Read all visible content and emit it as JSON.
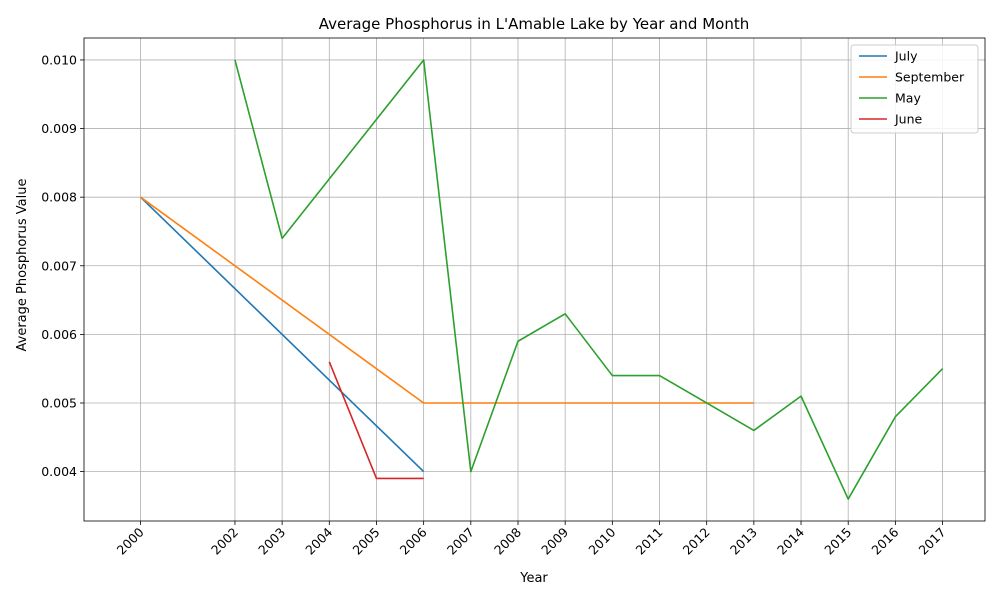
{
  "chart_data": {
    "type": "line",
    "title": "Average Phosphorus in L'Amable Lake by Year and Month",
    "xlabel": "Year",
    "ylabel": "Average Phosphorus Value",
    "xlim": [
      1998.8,
      2017.9
    ],
    "ylim": [
      0.00328,
      0.01032
    ],
    "x_ticks": [
      2000,
      2002,
      2003,
      2004,
      2005,
      2006,
      2007,
      2008,
      2009,
      2010,
      2011,
      2012,
      2013,
      2014,
      2015,
      2016,
      2017
    ],
    "y_ticks": [
      0.004,
      0.005,
      0.006,
      0.007,
      0.008,
      0.009,
      0.01
    ],
    "grid": true,
    "legend_position": "top-right",
    "series": [
      {
        "name": "July",
        "color": "#1f77b4",
        "x": [
          2000,
          2006
        ],
        "y": [
          0.008,
          0.004
        ]
      },
      {
        "name": "September",
        "color": "#ff7f0e",
        "x": [
          2000,
          2006,
          2013
        ],
        "y": [
          0.008,
          0.005,
          0.005
        ]
      },
      {
        "name": "May",
        "color": "#2ca02c",
        "x": [
          2002,
          2003,
          2006,
          2007,
          2008,
          2009,
          2010,
          2011,
          2012,
          2013,
          2014,
          2015,
          2016,
          2017
        ],
        "y": [
          0.01,
          0.0074,
          0.01,
          0.004,
          0.0059,
          0.0063,
          0.0054,
          0.0054,
          0.005,
          0.0046,
          0.0051,
          0.0036,
          0.0048,
          0.0055
        ]
      },
      {
        "name": "June",
        "color": "#d62728",
        "x": [
          2004,
          2005,
          2006
        ],
        "y": [
          0.0056,
          0.0039,
          0.0039
        ]
      }
    ]
  }
}
